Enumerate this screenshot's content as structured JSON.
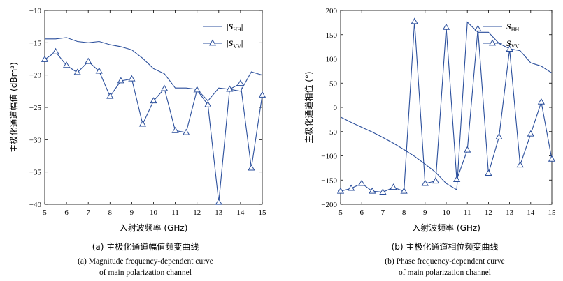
{
  "colors": {
    "series": "#2b4f9c",
    "axis": "#000000"
  },
  "chart_data": [
    {
      "type": "line",
      "xlabel": "入射波频率 (GHz)",
      "ylabel": "主极化通道幅值 (dBm²)",
      "xlim": [
        5,
        15
      ],
      "ylim": [
        -40,
        -10
      ],
      "xticks": [
        5,
        6,
        7,
        8,
        9,
        10,
        11,
        12,
        13,
        14,
        15
      ],
      "yticks": [
        -10,
        -15,
        -20,
        -25,
        -30,
        -35,
        -40
      ],
      "legend_position": "top-right",
      "caption_cn": "(a) 主极化通道幅值频变曲线",
      "caption_en_1": "(a) Magnitude frequency-dependent curve",
      "caption_en_2": "of main polarization channel",
      "series": [
        {
          "name": "|S_HH|",
          "legend_main": "|S",
          "legend_sub": "HH",
          "legend_end": "|",
          "marker": "none",
          "x": [
            5,
            5.5,
            6,
            6.5,
            7,
            7.5,
            8,
            8.5,
            9,
            9.5,
            10,
            10.5,
            11,
            11.5,
            12,
            12.5,
            13,
            13.5,
            14,
            14.5,
            15
          ],
          "y": [
            -14.4,
            -14.4,
            -14.2,
            -14.8,
            -15.0,
            -14.8,
            -15.3,
            -15.6,
            -16.1,
            -17.4,
            -19.0,
            -19.8,
            -22.0,
            -22.0,
            -22.2,
            -24.0,
            -22.0,
            -22.2,
            -22.5,
            -19.5,
            -20.0
          ]
        },
        {
          "name": "|S_VV|",
          "legend_main": "|S",
          "legend_sub": "VV",
          "legend_end": "|",
          "marker": "triangle",
          "x": [
            5,
            5.5,
            6,
            6.5,
            7,
            7.5,
            8,
            8.5,
            9,
            9.5,
            10,
            10.5,
            11,
            11.5,
            12,
            12.5,
            13,
            13.5,
            14,
            14.5,
            15
          ],
          "y": [
            -17.6,
            -16.4,
            -18.5,
            -19.6,
            -17.9,
            -19.4,
            -23.3,
            -20.9,
            -20.6,
            -27.6,
            -24.0,
            -22.1,
            -28.6,
            -28.9,
            -22.3,
            -24.6,
            -39.7,
            -22.2,
            -21.3,
            -34.4,
            -23.1
          ]
        }
      ]
    },
    {
      "type": "line",
      "xlabel": "入射波频率 (GHz)",
      "ylabel": "主极化通道相位 (°)",
      "xlim": [
        5,
        15
      ],
      "ylim": [
        -200,
        200
      ],
      "xticks": [
        5,
        6,
        7,
        8,
        9,
        10,
        11,
        12,
        13,
        14,
        15
      ],
      "yticks": [
        200,
        150,
        100,
        50,
        0,
        -50,
        -100,
        -150,
        -200
      ],
      "legend_position": "top-right",
      "caption_cn": "(b) 主极化通道相位频变曲线",
      "caption_en_1": "(b) Phase frequency-dependent curve",
      "caption_en_2": "of main polarization channel",
      "series": [
        {
          "name": "S_HH",
          "legend_main": "S",
          "legend_sub": "HH",
          "legend_end": "",
          "marker": "none",
          "x": [
            5,
            5.5,
            6,
            6.5,
            7,
            7.5,
            8,
            8.5,
            9,
            9.5,
            10,
            10.5,
            11,
            11.5,
            12,
            12.5,
            13,
            13.5,
            14,
            14.5,
            15
          ],
          "y": [
            -20,
            -31,
            -41,
            -51,
            -62,
            -74,
            -87,
            -101,
            -117,
            -134,
            -157,
            -170,
            176,
            155,
            155,
            132,
            121,
            117,
            92,
            85,
            71
          ]
        },
        {
          "name": "S_VV",
          "legend_main": "S",
          "legend_sub": "VV",
          "legend_end": "",
          "marker": "triangle",
          "x": [
            5,
            5.5,
            6,
            6.5,
            7,
            7.5,
            8,
            8.5,
            9,
            9.5,
            10,
            10.5,
            11,
            11.5,
            12,
            12.5,
            13,
            13.5,
            14,
            14.5,
            15
          ],
          "y": [
            -173,
            -167,
            -157,
            -173,
            -175,
            -165,
            -173,
            177,
            -157,
            -152,
            165,
            -149,
            -88,
            162,
            -136,
            -61,
            120,
            -119,
            -55,
            11,
            -107
          ]
        }
      ]
    }
  ]
}
